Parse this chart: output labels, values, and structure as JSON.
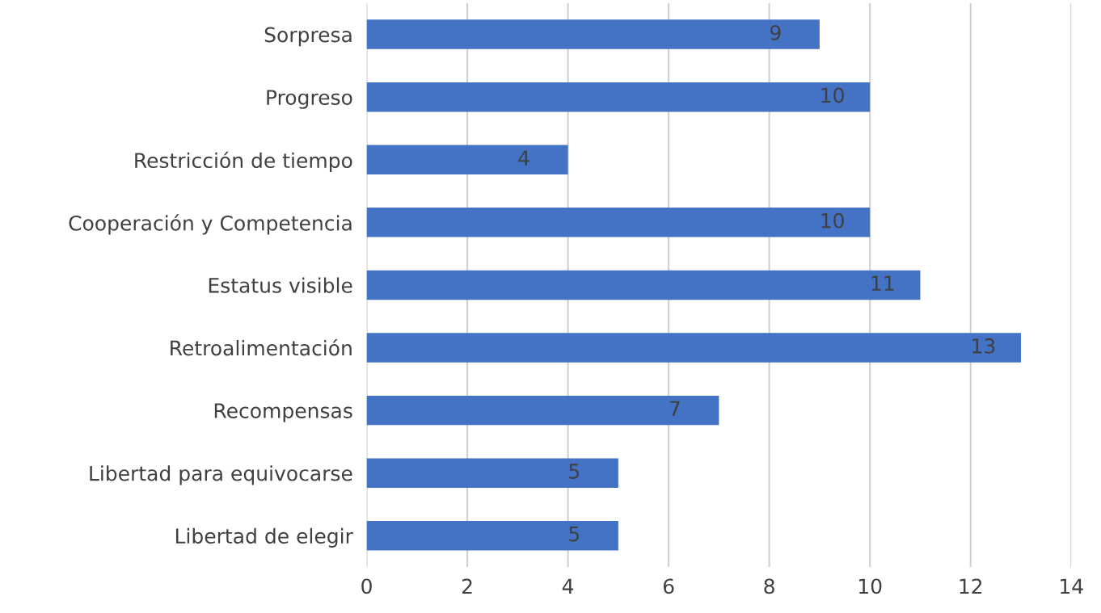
{
  "chart_data": {
    "type": "bar",
    "orientation": "horizontal",
    "categories": [
      "Sorpresa",
      "Progreso",
      "Restricción de tiempo",
      "Cooperación y Competencia",
      "Estatus visible",
      "Retroalimentación",
      "Recompensas",
      "Libertad para equivocarse",
      "Libertad de elegir"
    ],
    "values": [
      9,
      10,
      4,
      10,
      11,
      13,
      7,
      5,
      5
    ],
    "color": "#4472c4",
    "xlim": [
      0,
      14
    ],
    "xticks": [
      0,
      2,
      4,
      6,
      8,
      10,
      12,
      14
    ],
    "grid": "x",
    "data_labels": true
  }
}
